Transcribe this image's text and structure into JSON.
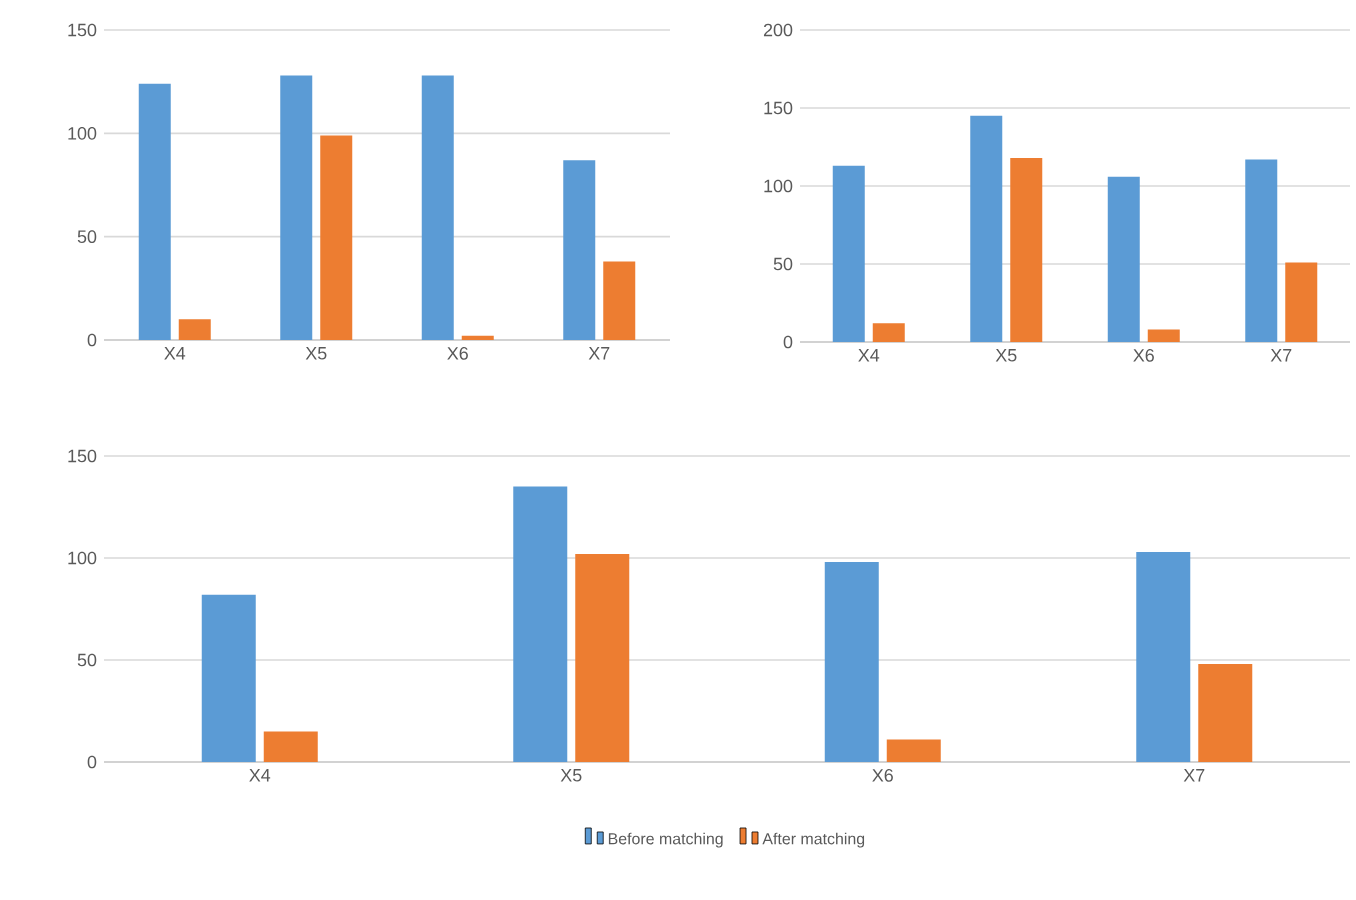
{
  "chart_data": [
    {
      "type": "bar",
      "categories": [
        "X4",
        "X5",
        "X6",
        "X7"
      ],
      "ylim": [
        0,
        150
      ],
      "yticks": [
        0,
        50,
        100,
        150
      ],
      "grid": "y",
      "series": [
        {
          "color": "#5b9bd5",
          "values": [
            124,
            128,
            128,
            87
          ]
        },
        {
          "color": "#ed7d31",
          "values": [
            10,
            99,
            2,
            38
          ]
        }
      ]
    },
    {
      "type": "bar",
      "categories": [
        "X4",
        "X5",
        "X6",
        "X7"
      ],
      "ylim": [
        0,
        200
      ],
      "yticks": [
        0,
        50,
        100,
        150,
        200
      ],
      "grid": "y",
      "series": [
        {
          "color": "#5b9bd5",
          "values": [
            113,
            145,
            106,
            117
          ]
        },
        {
          "color": "#ed7d31",
          "values": [
            12,
            118,
            8,
            51
          ]
        }
      ]
    },
    {
      "type": "bar",
      "categories": [
        "X4",
        "X5",
        "X6",
        "X7"
      ],
      "ylim": [
        0,
        150
      ],
      "yticks": [
        0,
        50,
        100,
        150
      ],
      "grid": "y",
      "legend": "bottom",
      "series": [
        {
          "name": "Before matching",
          "color": "#5b9bd5",
          "values": [
            82,
            135,
            98,
            103
          ]
        },
        {
          "name": "After matching",
          "color": "#ed7d31",
          "values": [
            15,
            102,
            11,
            48
          ]
        }
      ]
    }
  ]
}
